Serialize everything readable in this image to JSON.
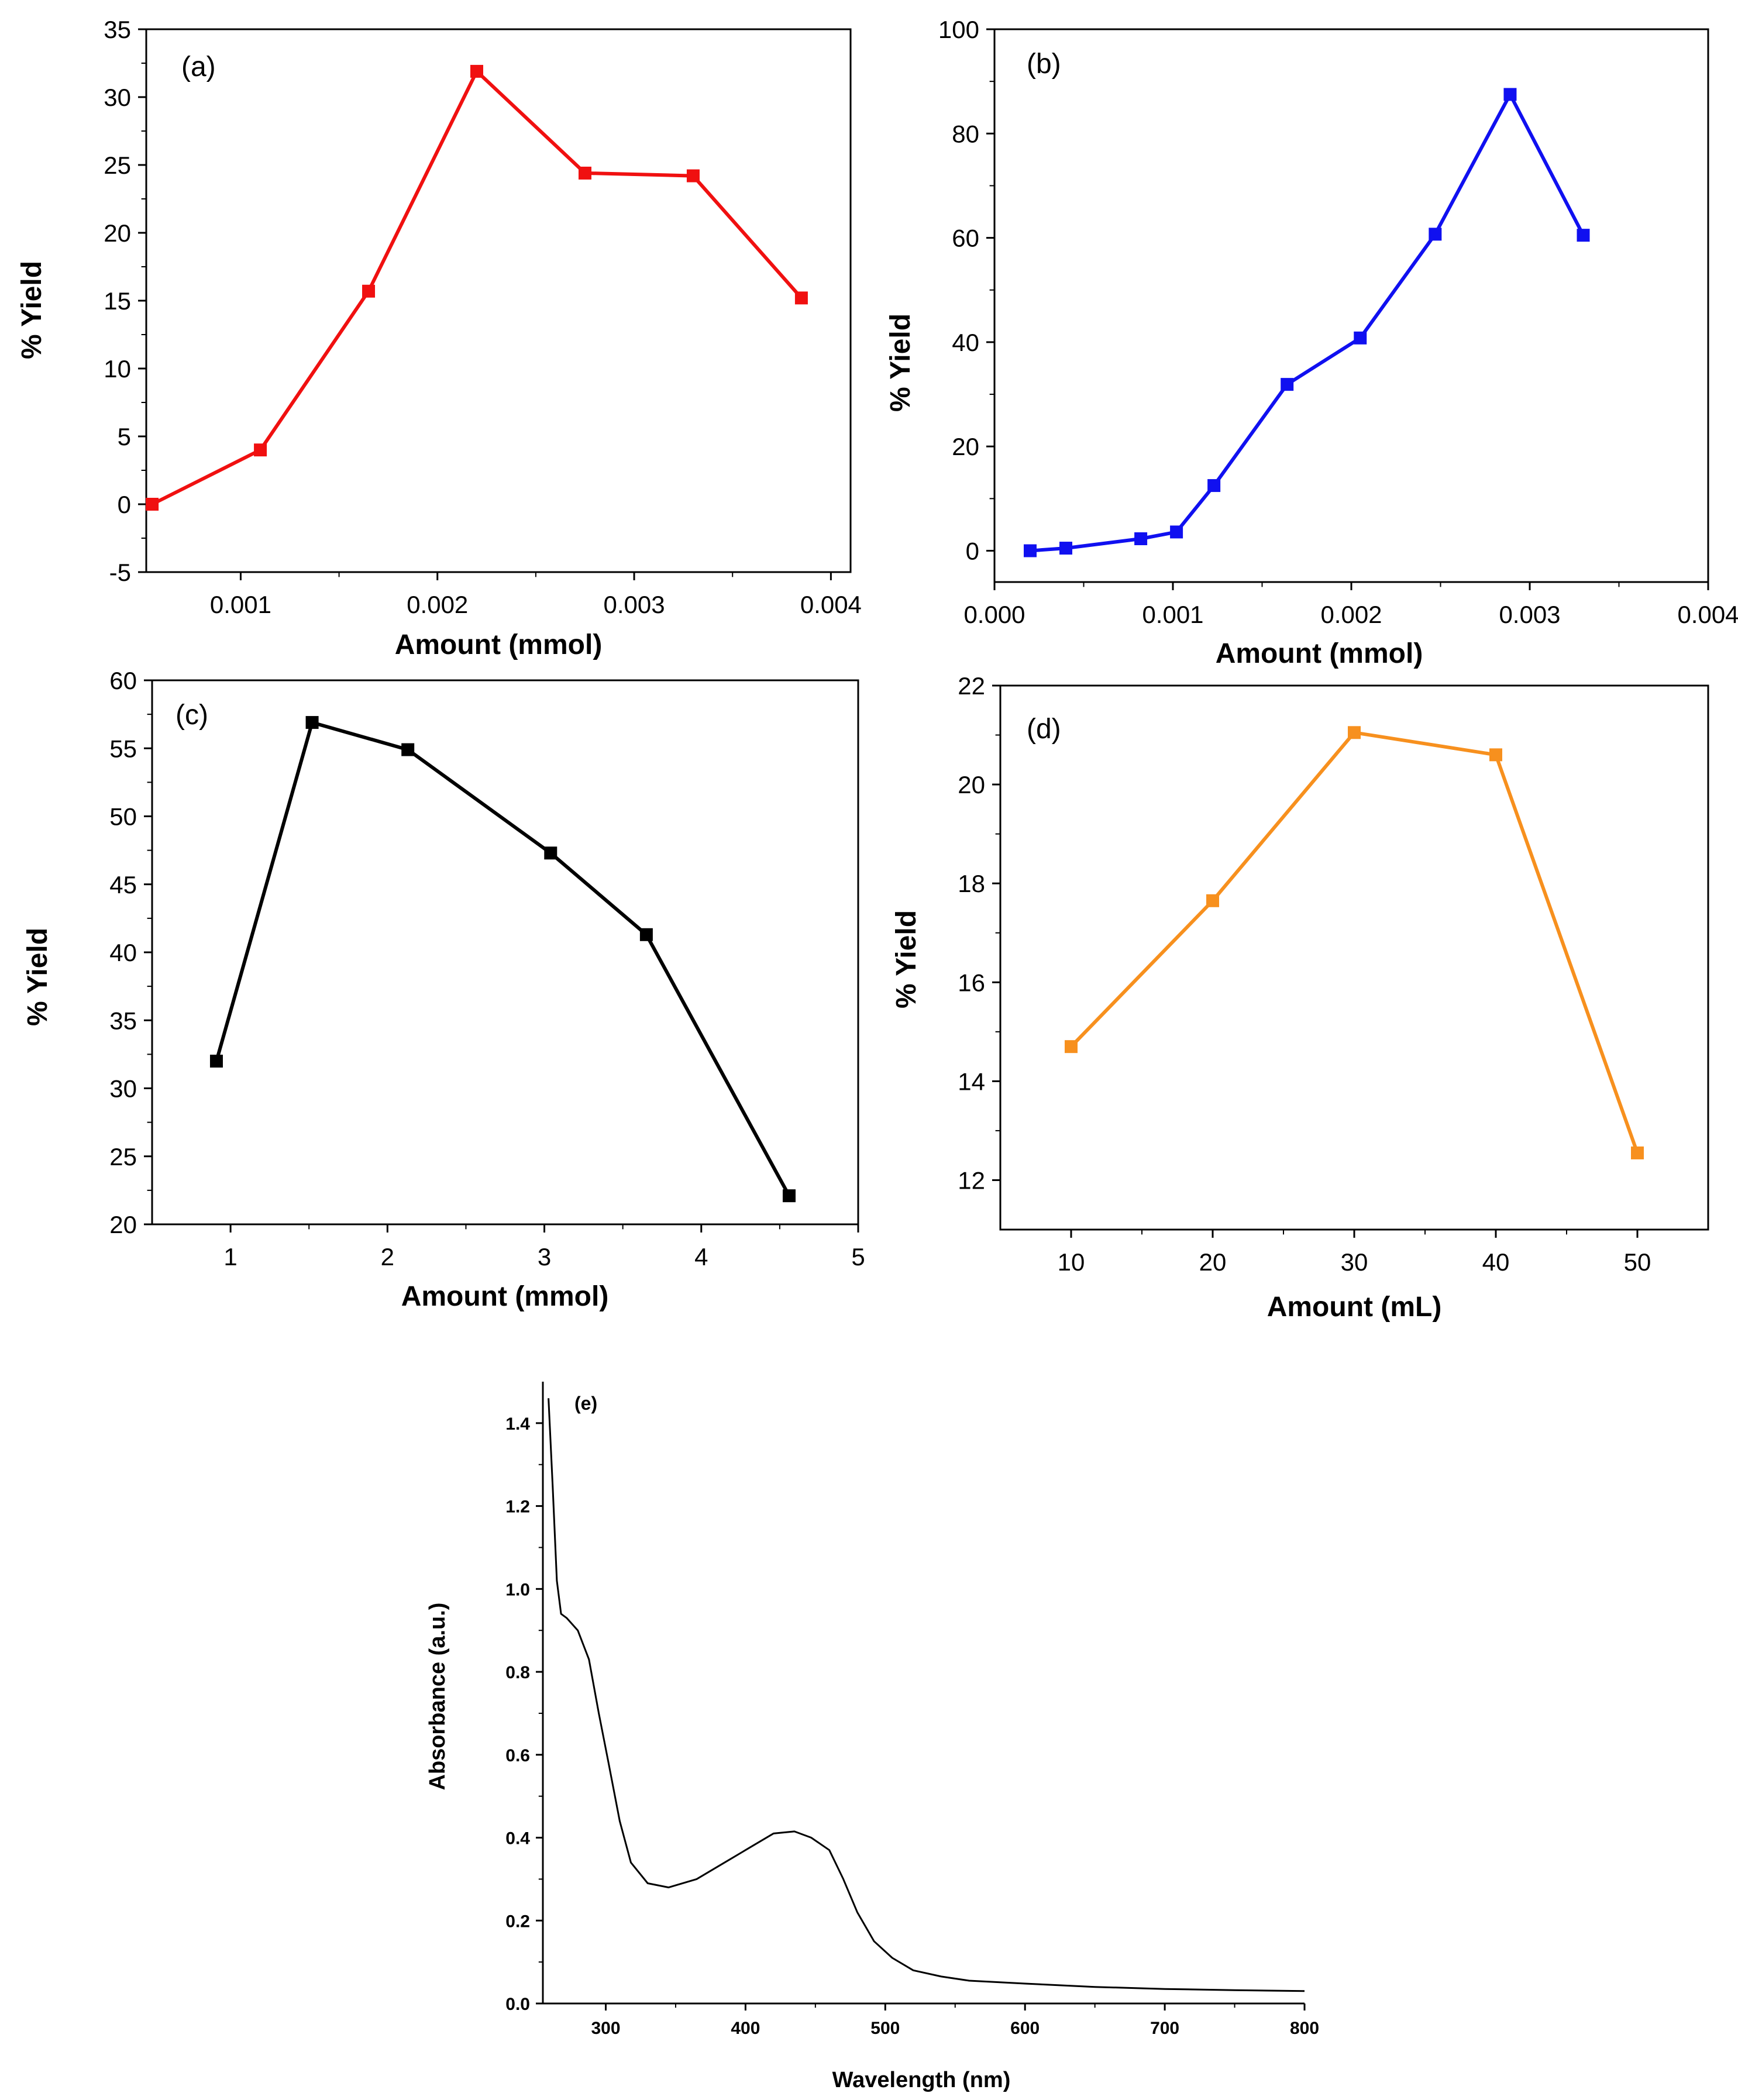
{
  "chart_data": [
    {
      "id": "a",
      "type": "line",
      "panel_label": "(a)",
      "xlabel": "Amount (mmol)",
      "ylabel": "% Yield",
      "xlim": [
        0.00052,
        0.0041
      ],
      "ylim": [
        -5,
        35
      ],
      "xticks": [
        0.001,
        0.002,
        0.003,
        0.004
      ],
      "xtick_labels": [
        "0.001",
        "0.002",
        "0.003",
        "0.004"
      ],
      "yticks": [
        -5,
        0,
        5,
        10,
        15,
        20,
        25,
        30,
        35
      ],
      "ytick_labels": [
        "-5",
        "0",
        "5",
        "10",
        "15",
        "20",
        "25",
        "30",
        "35"
      ],
      "color": "#f01010",
      "series": [
        {
          "name": "% Yield",
          "x": [
            0.00055,
            0.0011,
            0.00165,
            0.0022,
            0.00275,
            0.0033,
            0.00385
          ],
          "y": [
            0,
            4,
            15.7,
            31.9,
            24.4,
            24.2,
            15.2
          ]
        }
      ],
      "grid": false
    },
    {
      "id": "b",
      "type": "line",
      "panel_label": "(b)",
      "xlabel": "Amount (mmol)",
      "ylabel": "% Yield",
      "xlim": [
        0,
        0.004
      ],
      "ylim": [
        -6,
        100
      ],
      "xticks": [
        0,
        0.001,
        0.002,
        0.003,
        0.004
      ],
      "xtick_labels": [
        "0.000",
        "0.001",
        "0.002",
        "0.003",
        "0.004"
      ],
      "yticks": [
        0,
        20,
        40,
        60,
        80,
        100
      ],
      "ytick_labels": [
        "0",
        "20",
        "40",
        "60",
        "80",
        "100"
      ],
      "color": "#1010f0",
      "series": [
        {
          "name": "% Yield",
          "x": [
            0.0002,
            0.0004,
            0.00082,
            0.00102,
            0.00123,
            0.00164,
            0.00205,
            0.00247,
            0.00289,
            0.0033
          ],
          "y": [
            0,
            0.5,
            2.3,
            3.6,
            12.5,
            31.9,
            40.8,
            60.7,
            87.5,
            60.5
          ]
        }
      ],
      "grid": false
    },
    {
      "id": "c",
      "type": "line",
      "panel_label": "(c)",
      "xlabel": "Amount (mmol)",
      "ylabel": "% Yield",
      "xlim": [
        0.5,
        5
      ],
      "ylim": [
        20,
        60
      ],
      "xticks": [
        1,
        2,
        3,
        4,
        5
      ],
      "xtick_labels": [
        "1",
        "2",
        "3",
        "4",
        "5"
      ],
      "yticks": [
        20,
        25,
        30,
        35,
        40,
        45,
        50,
        55,
        60
      ],
      "ytick_labels": [
        "20",
        "25",
        "30",
        "35",
        "40",
        "45",
        "50",
        "55",
        "60"
      ],
      "color": "#000000",
      "series": [
        {
          "name": "% Yield",
          "x": [
            0.91,
            1.52,
            2.13,
            3.04,
            3.65,
            4.56
          ],
          "y": [
            32,
            56.9,
            54.9,
            47.3,
            41.3,
            22.1
          ]
        }
      ],
      "grid": false
    },
    {
      "id": "d",
      "type": "line",
      "panel_label": "(d)",
      "xlabel": "Amount (mL)",
      "ylabel": "% Yield",
      "xlim": [
        5,
        55
      ],
      "ylim": [
        11,
        22
      ],
      "xticks": [
        10,
        20,
        30,
        40,
        50
      ],
      "xtick_labels": [
        "10",
        "20",
        "30",
        "40",
        "50"
      ],
      "yticks": [
        12,
        14,
        16,
        18,
        20,
        22
      ],
      "ytick_labels": [
        "12",
        "14",
        "16",
        "18",
        "20",
        "22"
      ],
      "color": "#f7901e",
      "series": [
        {
          "name": "% Yield",
          "x": [
            10,
            20,
            30,
            40,
            50
          ],
          "y": [
            14.7,
            17.65,
            21.05,
            20.6,
            12.55
          ]
        }
      ],
      "grid": false
    },
    {
      "id": "e",
      "type": "line",
      "panel_label": "(e)",
      "xlabel": "Wavelength (nm)",
      "ylabel": "Absorbance (a.u.)",
      "xlim": [
        255,
        800
      ],
      "ylim": [
        0,
        1.5
      ],
      "xticks": [
        300,
        400,
        500,
        600,
        700,
        800
      ],
      "xtick_labels": [
        "300",
        "400",
        "500",
        "600",
        "700",
        "800"
      ],
      "yticks": [
        0,
        0.2,
        0.4,
        0.6,
        0.8,
        1.0,
        1.2,
        1.4
      ],
      "ytick_labels": [
        "0.0",
        "0.2",
        "0.4",
        "0.6",
        "0.8",
        "1.0",
        "1.2",
        "1.4"
      ],
      "color": "#000000",
      "series": [
        {
          "name": "Absorbance",
          "x": [
            259,
            262,
            265,
            268,
            272,
            280,
            288,
            295,
            302,
            310,
            318,
            330,
            345,
            365,
            385,
            405,
            420,
            435,
            447,
            460,
            470,
            480,
            492,
            505,
            520,
            540,
            560,
            600,
            650,
            700,
            750,
            800
          ],
          "y": [
            1.46,
            1.25,
            1.02,
            0.94,
            0.93,
            0.9,
            0.83,
            0.7,
            0.58,
            0.44,
            0.34,
            0.29,
            0.28,
            0.3,
            0.34,
            0.38,
            0.41,
            0.415,
            0.4,
            0.37,
            0.3,
            0.22,
            0.15,
            0.11,
            0.08,
            0.065,
            0.055,
            0.048,
            0.04,
            0.035,
            0.032,
            0.03
          ]
        }
      ],
      "grid": false
    }
  ]
}
